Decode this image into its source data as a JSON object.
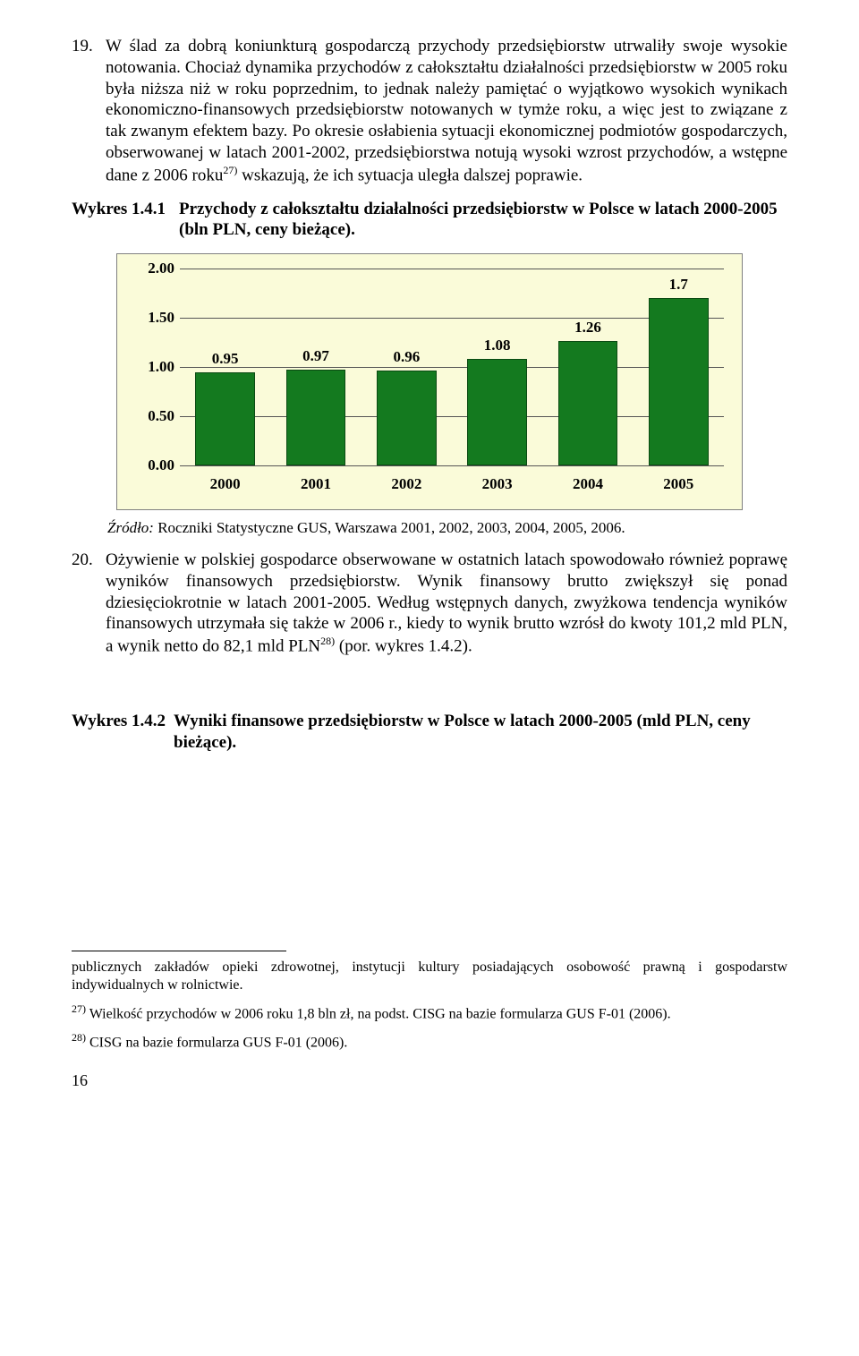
{
  "para19": {
    "num": "19.",
    "text_a": "W ślad za dobrą koniunkturą gospodarczą przychody przedsiębiorstw utrwaliły swoje wysokie notowania. Chociaż dynamika przychodów z całokształtu działalności przedsiębiorstw w 2005 roku była niższa niż w roku poprzednim, to jednak należy pamiętać o wyjątkowo wysokich wynikach ekonomiczno-finansowych przedsiębiorstw notowanych w tymże roku, a więc jest to związane z tak zwanym efektem bazy. Po okresie osłabienia sytuacji ekonomicznej podmiotów gospodarczych, obserwowanej w latach 2001-2002, przedsiębiorstwa notują wysoki wzrost przychodów, a wstępne dane z 2006 roku",
    "sup1": "27)",
    "text_b": " wskazują, że ich sytuacja uległa dalszej poprawie."
  },
  "wykres1": {
    "label": "Wykres 1.4.1",
    "title": "Przychody z całokształtu działalności przedsiębiorstw w Polsce w latach 2000-2005 (bln PLN, ceny bieżące)."
  },
  "chart": {
    "ylim_max": 2.0,
    "ytick_step": 0.5,
    "yticks": [
      "2.00",
      "1.50",
      "1.00",
      "0.50",
      "0.00"
    ],
    "categories": [
      "2000",
      "2001",
      "2002",
      "2003",
      "2004",
      "2005"
    ],
    "values": [
      0.95,
      0.97,
      0.96,
      1.08,
      1.26,
      1.7
    ],
    "value_labels": [
      "0.95",
      "0.97",
      "0.96",
      "1.08",
      "1.26",
      "1.7"
    ],
    "bar_color": "#147a1f",
    "bar_border": "#0b4a13",
    "bg_color": "#fafbd9",
    "grid_color": "#555555"
  },
  "source1": {
    "prefix": "Źródło:",
    "text": " Roczniki Statystyczne GUS, Warszawa 2001, 2002, 2003, 2004, 2005, 2006."
  },
  "para20": {
    "num": "20.",
    "text_a": "Ożywienie w polskiej gospodarce obserwowane w ostatnich latach spowodowało również poprawę wyników finansowych przedsiębiorstw. Wynik finansowy brutto zwiększył się ponad dziesięciokrotnie w latach 2001-2005. Według wstępnych danych, zwyżkowa tendencja wyników finansowych utrzymała się także w 2006 r., kiedy to wynik brutto wzrósł do kwoty 101,2 mld PLN, a wynik netto do 82,1 mld PLN",
    "sup1": "28)",
    "text_b": " (por. wykres 1.4.2)."
  },
  "wykres2": {
    "label": "Wykres 1.4.2",
    "title": " Wyniki finansowe przedsiębiorstw w Polsce w latach 2000-2005 (mld PLN, ceny bieżące)."
  },
  "footnotes": {
    "fcont": "publicznych zakładów opieki zdrowotnej, instytucji kultury posiadających osobowość prawną i gospodarstw indywidualnych w rolnictwie.",
    "f27_sup": "27)",
    "f27": " Wielkość przychodów w 2006 roku 1,8 bln zł, na podst. CISG na bazie formularza GUS F-01 (2006).",
    "f28_sup": "28)",
    "f28": " CISG na bazie formularza GUS F-01 (2006)."
  },
  "page_number": "16"
}
